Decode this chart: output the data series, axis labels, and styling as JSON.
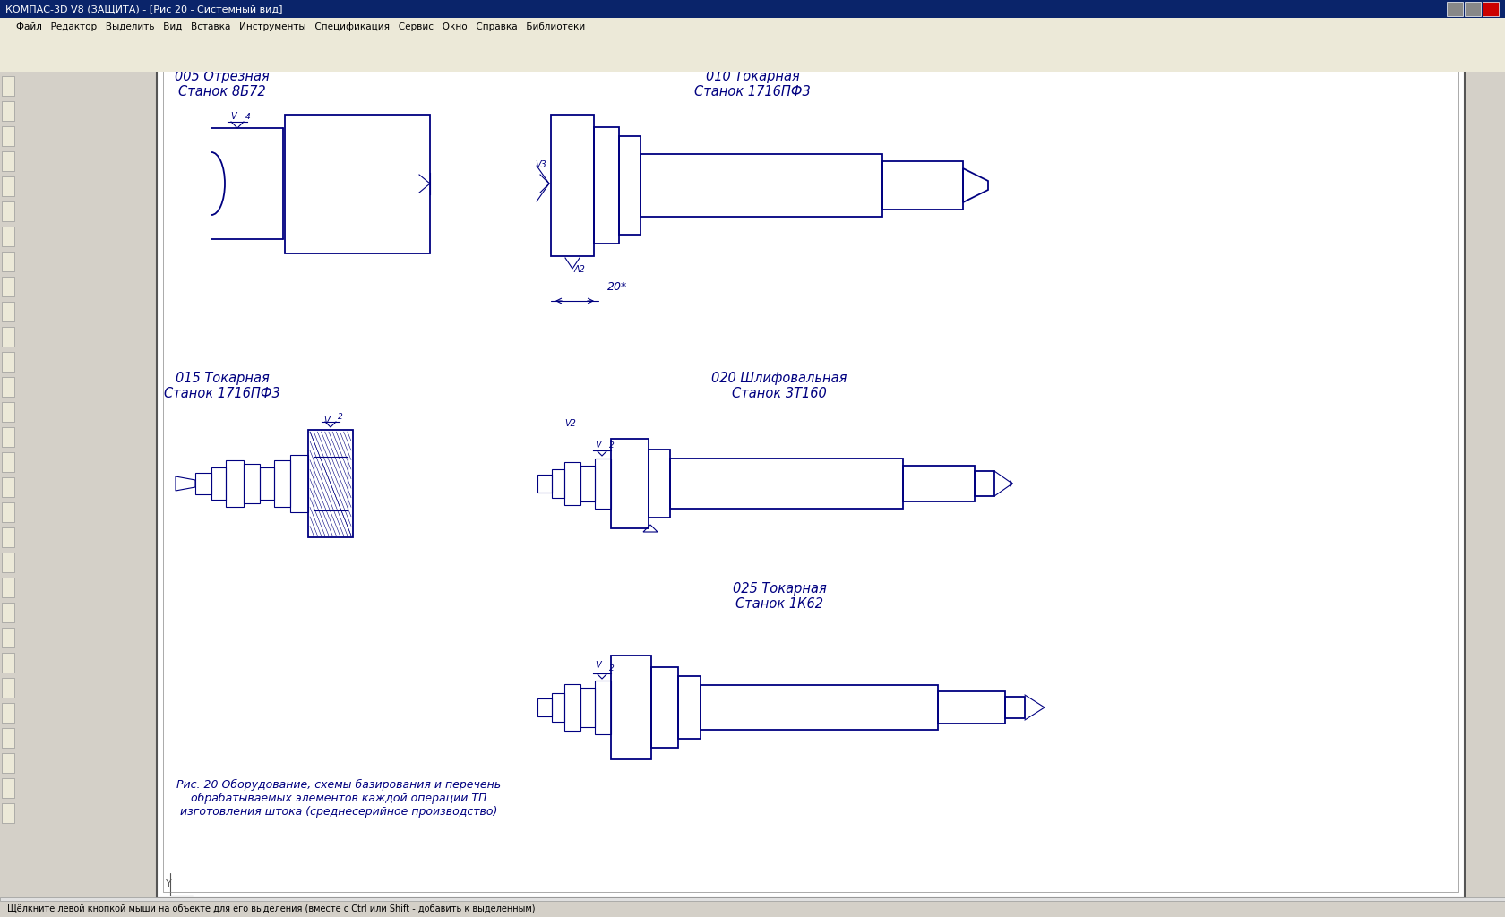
{
  "title": "КОМПАС-3D V8 (ЗАЩИТА) - [Рис 20 - Системный вид]",
  "bg_color": "#d4d0c8",
  "paper_color": "#ffffff",
  "centerline_color": "#cc8800",
  "drawing_color": "#000080",
  "text_color": "#000080",
  "labels": {
    "op005": "005 Отрезная\nСтанок 8Б72",
    "op010": "010 Токарная\nСтанок 1716ПФ3",
    "op015": "015 Токарная\nСтанок 1716ПФ3",
    "op020": "020 Шлифовальная\nСтанок 3Т160",
    "op025": "025 Токарная\nСтанок 1К62"
  },
  "caption": "Рис. 20 Оборудование, схемы базирования и перечень\nобрабатываемых элементов каждой операции ТП\nизготовления штока (среднесерийное производство)",
  "toolbar_color": "#d4d0c8",
  "title_bar_color": "#0a246a",
  "title_text_color": "#ffffff",
  "menubar_color": "#ece9d8",
  "status_bar_color": "#d4d0c8"
}
